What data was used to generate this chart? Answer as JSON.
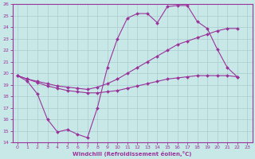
{
  "xlabel": "Windchill (Refroidissement éolien,°C)",
  "bg_color": "#c8e8e8",
  "grid_color": "#aacccc",
  "line_color": "#993399",
  "xlim": [
    -0.5,
    23.5
  ],
  "ylim": [
    14,
    26
  ],
  "xticks": [
    0,
    1,
    2,
    3,
    4,
    5,
    6,
    7,
    8,
    9,
    10,
    11,
    12,
    13,
    14,
    15,
    16,
    17,
    18,
    19,
    20,
    21,
    22,
    23
  ],
  "yticks": [
    14,
    15,
    16,
    17,
    18,
    19,
    20,
    21,
    22,
    23,
    24,
    25,
    26
  ],
  "wc_x": [
    0,
    1,
    2,
    3,
    4,
    5,
    6,
    7,
    8,
    9,
    10,
    11,
    12,
    13,
    14,
    15,
    16,
    17,
    18,
    19,
    20,
    21,
    22
  ],
  "wc_y": [
    19.8,
    19.3,
    18.2,
    16.0,
    14.9,
    15.1,
    14.7,
    14.4,
    17.0,
    20.5,
    23.0,
    24.8,
    25.2,
    25.2,
    24.4,
    25.8,
    25.9,
    25.9,
    24.5,
    23.9,
    22.1,
    20.5,
    19.7
  ],
  "upper_x": [
    0,
    1,
    2,
    3,
    4,
    5,
    6,
    7,
    8,
    9,
    10,
    11,
    12,
    13,
    14,
    15,
    16,
    17,
    18,
    19,
    20,
    21,
    22
  ],
  "upper_y": [
    19.8,
    19.5,
    19.3,
    19.1,
    18.9,
    18.8,
    18.7,
    18.6,
    18.8,
    19.1,
    19.5,
    20.0,
    20.5,
    21.0,
    21.5,
    22.0,
    22.5,
    22.8,
    23.1,
    23.4,
    23.7,
    23.9,
    23.9
  ],
  "lower_x": [
    0,
    1,
    2,
    3,
    4,
    5,
    6,
    7,
    8,
    9,
    10,
    11,
    12,
    13,
    14,
    15,
    16,
    17,
    18,
    19,
    20,
    21,
    22
  ],
  "lower_y": [
    19.8,
    19.5,
    19.2,
    18.9,
    18.7,
    18.5,
    18.4,
    18.3,
    18.3,
    18.4,
    18.5,
    18.7,
    18.9,
    19.1,
    19.3,
    19.5,
    19.6,
    19.7,
    19.8,
    19.8,
    19.8,
    19.8,
    19.7
  ]
}
